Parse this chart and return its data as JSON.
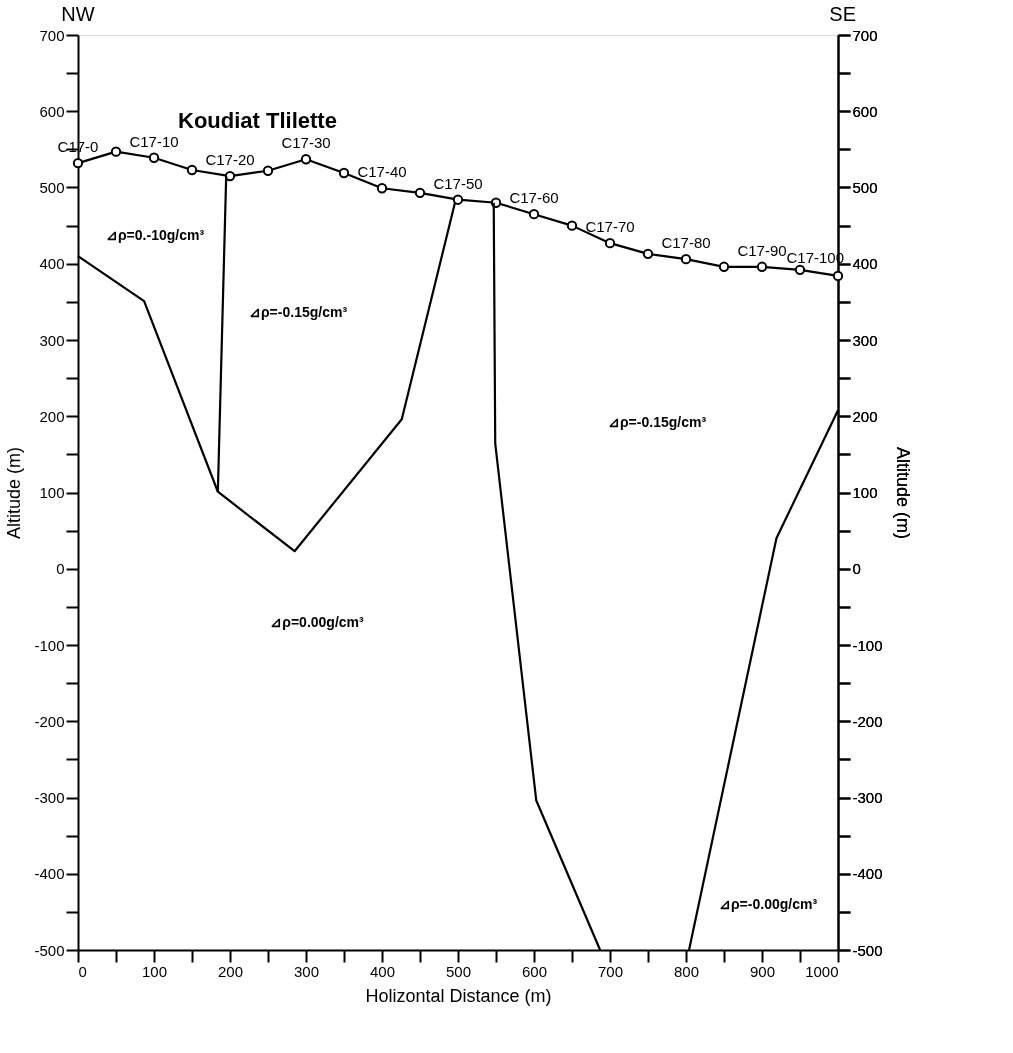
{
  "chart_data": {
    "type": "line",
    "title": "Koudiat Tlilette",
    "xlabel": "Holizontal Distance (m)",
    "ylabel": "Altitude (m)",
    "y2label": "Altitude (m)",
    "xlim": [
      0,
      1000
    ],
    "ylim": [
      -500,
      700
    ],
    "y2lim": [
      -500,
      700
    ],
    "xticks": [
      0,
      {
        "value": 50,
        "label": null
      },
      100,
      {
        "value": 150,
        "label": null
      },
      200,
      {
        "value": 250,
        "label": null
      },
      300,
      {
        "value": 350,
        "label": null
      },
      400,
      {
        "value": 450,
        "label": null
      },
      500,
      {
        "value": 550,
        "label": null
      },
      600,
      {
        "value": 650,
        "label": null
      },
      700,
      {
        "value": 750,
        "label": null
      },
      800,
      {
        "value": 850,
        "label": null
      },
      900,
      {
        "value": 950,
        "label": null
      },
      1000
    ],
    "yticks": [
      -500,
      {
        "value": -450,
        "label": null
      },
      -400,
      {
        "value": -350,
        "label": null
      },
      -300,
      {
        "value": -250,
        "label": null
      },
      -200,
      {
        "value": -150,
        "label": null
      },
      -100,
      {
        "value": -50,
        "label": null
      },
      0,
      {
        "value": 50,
        "label": null
      },
      100,
      {
        "value": 150,
        "label": null
      },
      200,
      {
        "value": 250,
        "label": null
      },
      300,
      {
        "value": 350,
        "label": null
      },
      400,
      {
        "value": 450,
        "label": null
      },
      500,
      {
        "value": 550,
        "label": null
      },
      600,
      {
        "value": 650,
        "label": null
      },
      700
    ],
    "y2ticks": [
      -500,
      {
        "value": -450,
        "label": null
      },
      -400,
      {
        "value": -350,
        "label": null
      },
      -300,
      {
        "value": -250,
        "label": null
      },
      -200,
      {
        "value": -150,
        "label": null
      },
      -100,
      {
        "value": -50,
        "label": null
      },
      0,
      {
        "value": 50,
        "label": null
      },
      100,
      {
        "value": 150,
        "label": null
      },
      200,
      {
        "value": 250,
        "label": null
      },
      300,
      {
        "value": 350,
        "label": null
      },
      400,
      {
        "value": 450,
        "label": null
      },
      500,
      {
        "value": 550,
        "label": null
      },
      600,
      {
        "value": 650,
        "label": null
      },
      700
    ],
    "grid": false,
    "line_style": "solid",
    "series": [
      {
        "marker": "circle",
        "color": "#000000",
        "x": [
          0,
          50,
          100,
          150,
          200,
          250,
          300,
          350,
          400,
          450,
          500,
          550,
          600,
          650,
          700,
          750,
          800,
          850,
          900,
          950,
          1000
        ],
        "values": [
          532,
          547,
          539,
          523,
          515,
          522,
          537,
          519,
          499,
          493,
          484,
          480,
          465,
          450,
          427,
          413,
          406,
          396,
          396,
          392,
          384
        ]
      },
      {
        "marker": "none",
        "color": "#000000",
        "x": [
          0,
          87,
          184,
          285,
          426,
          496
        ],
        "values": [
          410,
          351,
          101,
          23,
          196,
          480
        ]
      },
      {
        "marker": "none",
        "color": "#000000",
        "x": [
          195,
          184
        ],
        "values": [
          515,
          101
        ]
      },
      {
        "marker": "none",
        "color": "#000000",
        "x": [
          547,
          549,
          603,
          687
        ],
        "values": [
          480,
          164,
          -304,
          -500
        ]
      },
      {
        "marker": "none",
        "color": "#000000",
        "x": [
          804,
          919,
          1000
        ],
        "values": [
          -500,
          40,
          208
        ]
      }
    ],
    "annotations": [
      "NW",
      "SE",
      {
        "text": "C17-0",
        "x": 0,
        "y": 532
      },
      {
        "text": "C17-10",
        "x": 100,
        "y": 539
      },
      {
        "text": "C17-20",
        "x": 200,
        "y": 515
      },
      {
        "text": "C17-30",
        "x": 300,
        "y": 537
      },
      {
        "text": "C17-40",
        "x": 400,
        "y": 499
      },
      {
        "text": "C17-50",
        "x": 500,
        "y": 484
      },
      {
        "text": "C17-60",
        "x": 600,
        "y": 465
      },
      {
        "text": "C17-70",
        "x": 700,
        "y": 427
      },
      {
        "text": "C17-80",
        "x": 800,
        "y": 406
      },
      {
        "text": "C17-90",
        "x": 900,
        "y": 396
      },
      {
        "text": "C17-100",
        "x": 1000,
        "y": 384
      },
      "⊿ρ=0.-10g/cm³",
      "⊿ρ=-0.15g/cm³",
      "⊿ρ=-0.15g/cm³",
      "⊿ρ=0.00g/cm³",
      "⊿ρ=-0.00g/cm³"
    ]
  }
}
